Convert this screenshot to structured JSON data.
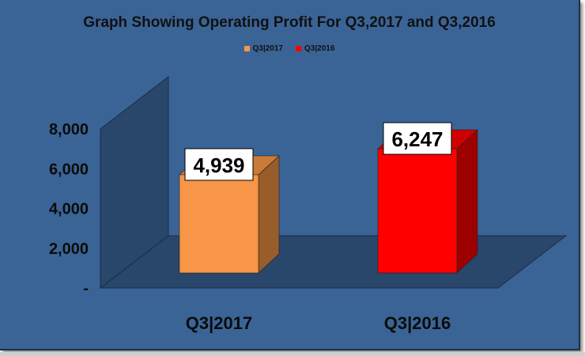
{
  "chart_data": {
    "type": "bar",
    "title": "Graph Showing Operating Profit For Q3,2017 and Q3,2016",
    "categories": [
      "Q3|2017",
      "Q3|2016"
    ],
    "series": [
      {
        "name": "Q3|2017",
        "values": [
          4939,
          null
        ],
        "color": "#f79646"
      },
      {
        "name": "Q3|2016",
        "values": [
          null,
          6247
        ],
        "color": "#ff0000"
      }
    ],
    "data_labels": [
      "4,939",
      "6,247"
    ],
    "yticks": [
      {
        "value": 0,
        "label": "-"
      },
      {
        "value": 2000,
        "label": "2,000"
      },
      {
        "value": 4000,
        "label": "4,000"
      },
      {
        "value": 6000,
        "label": "6,000"
      },
      {
        "value": 8000,
        "label": "8,000"
      }
    ],
    "ylim": [
      0,
      8000
    ],
    "legend_position": "top-center",
    "three_d": true,
    "colors": {
      "background": "#3a6496",
      "walls": "#29466b"
    }
  }
}
